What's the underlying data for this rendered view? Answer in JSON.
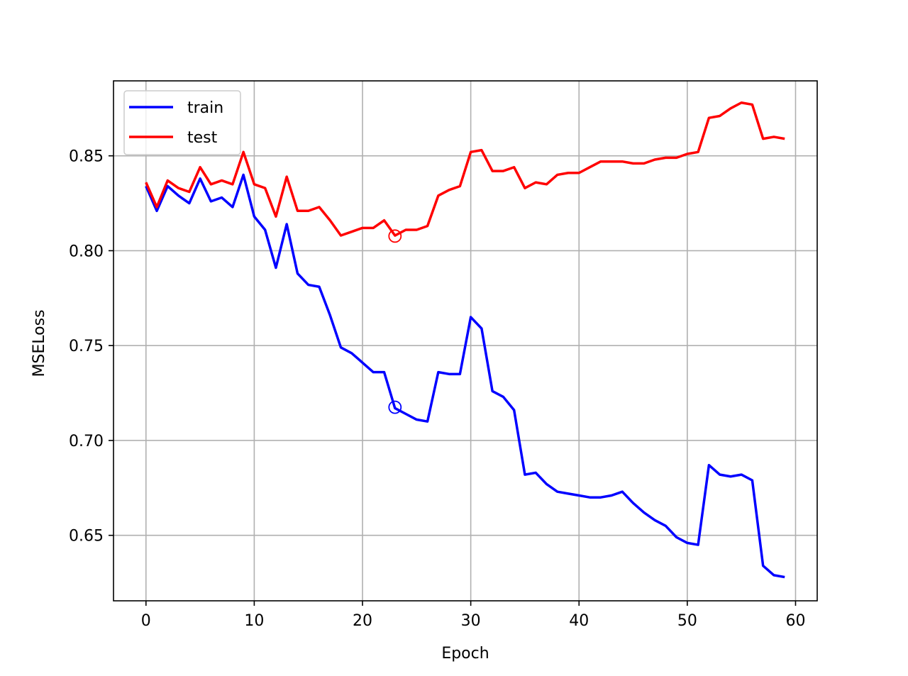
{
  "chart_data": {
    "type": "line",
    "xlabel": "Epoch",
    "ylabel": "MSELoss",
    "xlim": [
      -3,
      62
    ],
    "ylim": [
      0.6155,
      0.8895
    ],
    "xticks": [
      0,
      10,
      20,
      30,
      40,
      50,
      60
    ],
    "xtick_labels": [
      "0",
      "10",
      "20",
      "30",
      "40",
      "50",
      "60"
    ],
    "yticks": [
      0.65,
      0.7,
      0.75,
      0.8,
      0.85
    ],
    "ytick_labels": [
      "0.65",
      "0.70",
      "0.75",
      "0.80",
      "0.85"
    ],
    "grid": true,
    "legend_position": "upper-left",
    "x": [
      0,
      1,
      2,
      3,
      4,
      5,
      6,
      7,
      8,
      9,
      10,
      11,
      12,
      13,
      14,
      15,
      16,
      17,
      18,
      19,
      20,
      21,
      22,
      23,
      24,
      25,
      26,
      27,
      28,
      29,
      30,
      31,
      32,
      33,
      34,
      35,
      36,
      37,
      38,
      39,
      40,
      41,
      42,
      43,
      44,
      45,
      46,
      47,
      48,
      49,
      50,
      51,
      52,
      53,
      54,
      55,
      56,
      57,
      58,
      59
    ],
    "series": [
      {
        "name": "train",
        "color": "#0000ff",
        "values": [
          0.834,
          0.821,
          0.834,
          0.829,
          0.825,
          0.838,
          0.826,
          0.828,
          0.823,
          0.84,
          0.818,
          0.811,
          0.791,
          0.814,
          0.788,
          0.782,
          0.781,
          0.766,
          0.749,
          0.746,
          0.741,
          0.736,
          0.736,
          0.717,
          0.714,
          0.711,
          0.71,
          0.736,
          0.735,
          0.735,
          0.765,
          0.759,
          0.726,
          0.723,
          0.716,
          0.682,
          0.683,
          0.677,
          0.673,
          0.672,
          0.671,
          0.67,
          0.67,
          0.671,
          0.673,
          0.667,
          0.662,
          0.658,
          0.655,
          0.649,
          0.646,
          0.645,
          0.687,
          0.682,
          0.681,
          0.682,
          0.679,
          0.634,
          0.629,
          0.628
        ],
        "marker": {
          "x": 23,
          "y": 0.7175
        }
      },
      {
        "name": "test",
        "color": "#ff0000",
        "values": [
          0.836,
          0.823,
          0.837,
          0.833,
          0.831,
          0.844,
          0.835,
          0.837,
          0.835,
          0.852,
          0.835,
          0.833,
          0.818,
          0.839,
          0.821,
          0.821,
          0.823,
          0.816,
          0.808,
          0.81,
          0.812,
          0.812,
          0.816,
          0.808,
          0.811,
          0.811,
          0.813,
          0.829,
          0.832,
          0.834,
          0.852,
          0.853,
          0.842,
          0.842,
          0.844,
          0.833,
          0.836,
          0.835,
          0.84,
          0.841,
          0.841,
          0.844,
          0.847,
          0.847,
          0.847,
          0.846,
          0.846,
          0.848,
          0.849,
          0.849,
          0.851,
          0.852,
          0.87,
          0.871,
          0.875,
          0.878,
          0.877,
          0.859,
          0.86,
          0.859
        ],
        "marker": {
          "x": 23,
          "y": 0.8077
        }
      }
    ]
  }
}
